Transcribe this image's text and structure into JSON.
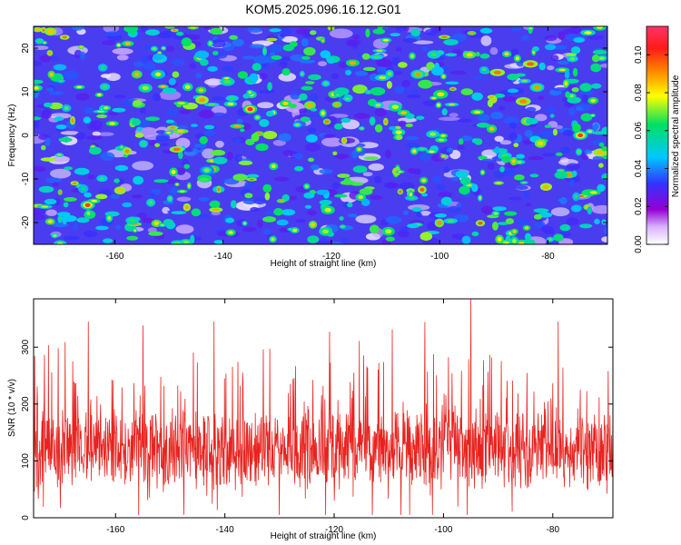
{
  "figure": {
    "title": "KOM5.2025.096.16.12.G01"
  },
  "chart_data": [
    {
      "type": "heatmap",
      "xlabel": "Height of straight line (km)",
      "ylabel": "Frequency (Hz)",
      "xlim": [
        -175,
        -69
      ],
      "ylim": [
        -25,
        25
      ],
      "x_ticks": [
        -160,
        -140,
        -120,
        -100,
        -80
      ],
      "y_ticks": [
        -20,
        -10,
        0,
        10,
        20
      ],
      "colorbar": {
        "label": "Normalized spectral amplitude",
        "range": [
          0,
          0.115
        ],
        "ticks": [
          "0.00",
          "0.02",
          "0.04",
          "0.06",
          "0.08",
          "0.10"
        ],
        "tick_values": [
          0,
          0.02,
          0.04,
          0.06,
          0.08,
          0.1
        ],
        "colormap": [
          "#ffffff",
          "#9400d3",
          "#3333ff",
          "#00c8ff",
          "#00e060",
          "#ffff00",
          "#ff6600",
          "#ff1a1a",
          "#ff3366"
        ]
      },
      "grid": false,
      "z_description_values": {
        "background_typical": 0.015,
        "blob_typical": 0.045,
        "peaks": [
          {
            "x": -135,
            "y": 6,
            "z": 0.11
          },
          {
            "x": -165,
            "y": -16,
            "z": 0.1
          },
          {
            "x": -74,
            "y": 0,
            "z": 0.1
          },
          {
            "x": -104,
            "y": 14,
            "z": 0.09
          },
          {
            "x": -82,
            "y": 11,
            "z": 0.09
          },
          {
            "x": -152,
            "y": 14,
            "z": 0.08
          },
          {
            "x": -143,
            "y": -8,
            "z": 0.07
          }
        ]
      }
    },
    {
      "type": "line",
      "xlabel": "Height of straight line (km)",
      "ylabel": "SNR (10 * v/v)",
      "xlim": [
        -175,
        -69
      ],
      "ylim": [
        0,
        385
      ],
      "x_ticks": [
        -160,
        -140,
        -120,
        -100,
        -80
      ],
      "y_ticks": [
        0,
        100,
        200,
        300
      ],
      "grid": false,
      "color": "#e8231f",
      "series_summary": {
        "baseline_typical": 120,
        "min": 5,
        "max": 385,
        "notable_peaks": [
          {
            "x": -95,
            "y": 385
          },
          {
            "x": -165,
            "y": 345
          },
          {
            "x": -142,
            "y": 345
          },
          {
            "x": -79,
            "y": 345
          },
          {
            "x": -155,
            "y": 338
          }
        ]
      }
    }
  ]
}
